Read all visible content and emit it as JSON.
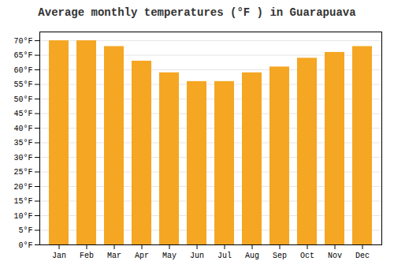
{
  "chart_data": {
    "type": "bar",
    "title": "Average monthly temperatures (°F ) in Guarapuava",
    "categories": [
      "Jan",
      "Feb",
      "Mar",
      "Apr",
      "May",
      "Jun",
      "Jul",
      "Aug",
      "Sep",
      "Oct",
      "Nov",
      "Dec"
    ],
    "values": [
      70,
      70,
      68,
      63,
      59,
      56,
      56,
      59,
      61,
      64,
      66,
      68
    ],
    "color": "#F5A623",
    "ylim": [
      0,
      73
    ],
    "yticks": [
      {
        "value": 0,
        "label": "0°F"
      },
      {
        "value": 5,
        "label": "5°F"
      },
      {
        "value": 10,
        "label": "10°F"
      },
      {
        "value": 15,
        "label": "15°F"
      },
      {
        "value": 20,
        "label": "20°F"
      },
      {
        "value": 25,
        "label": "25°F"
      },
      {
        "value": 30,
        "label": "30°F"
      },
      {
        "value": 35,
        "label": "35°F"
      },
      {
        "value": 40,
        "label": "40°F"
      },
      {
        "value": 45,
        "label": "45°F"
      },
      {
        "value": 50,
        "label": "50°F"
      },
      {
        "value": 55,
        "label": "55°F"
      },
      {
        "value": 60,
        "label": "60°F"
      },
      {
        "value": 65,
        "label": "65°F"
      },
      {
        "value": 70,
        "label": "70°F"
      }
    ],
    "grid": true
  }
}
